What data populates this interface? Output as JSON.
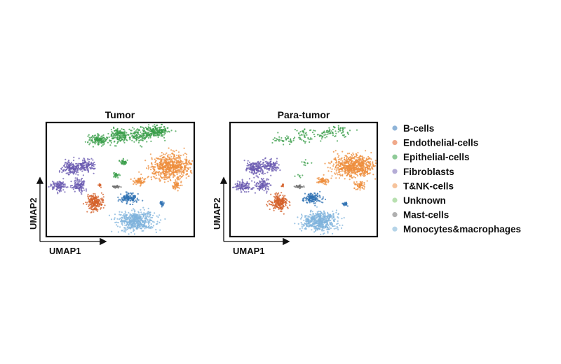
{
  "chart_data": {
    "type": "scatter",
    "xlabel": "UMAP1",
    "ylabel": "UMAP2",
    "grid": false,
    "legend_placement": "right",
    "panels": [
      {
        "title": "Tumor",
        "epithelial_density": 1.0
      },
      {
        "title": "Para-tumor",
        "epithelial_density": 0.25
      }
    ],
    "legend": [
      {
        "name": "B-cells",
        "color": "#8fb4d8",
        "plot_color": "#2f72b3"
      },
      {
        "name": "Endothelial-cells",
        "color": "#f0a98a",
        "plot_color": "#d4602a"
      },
      {
        "name": "Epithelial-cells",
        "color": "#8fcb98",
        "plot_color": "#3a9e4a"
      },
      {
        "name": "Fibroblasts",
        "color": "#b4acd6",
        "plot_color": "#6a5ab0"
      },
      {
        "name": "T&NK-cells",
        "color": "#f6c39c",
        "plot_color": "#ee8d3c"
      },
      {
        "name": "Unknown",
        "color": "#b8e0b0",
        "plot_color": "#a6d99c"
      },
      {
        "name": "Mast-cells",
        "color": "#b0b0b0",
        "plot_color": "#707070"
      },
      {
        "name": "Monocytes&macrophages",
        "color": "#b5d4e8",
        "plot_color": "#7fb3dc"
      }
    ],
    "clusters": [
      {
        "type": 2,
        "cx": 3.6,
        "cy": 6.8,
        "sx": 0.6,
        "sy": 0.3,
        "n": 150
      },
      {
        "type": 2,
        "cx": 4.9,
        "cy": 7.1,
        "sx": 0.5,
        "sy": 0.4,
        "n": 160
      },
      {
        "type": 2,
        "cx": 6.2,
        "cy": 7.1,
        "sx": 0.6,
        "sy": 0.4,
        "n": 120
      },
      {
        "type": 2,
        "cx": 7.4,
        "cy": 7.4,
        "sx": 0.7,
        "sy": 0.35,
        "n": 220
      },
      {
        "type": 2,
        "cx": 5.2,
        "cy": 5.2,
        "sx": 0.25,
        "sy": 0.15,
        "n": 40
      },
      {
        "type": 2,
        "cx": 4.7,
        "cy": 4.3,
        "sx": 0.2,
        "sy": 0.15,
        "n": 25
      },
      {
        "type": 3,
        "cx": 1.7,
        "cy": 4.8,
        "sx": 0.5,
        "sy": 0.4,
        "n": 160
      },
      {
        "type": 3,
        "cx": 2.7,
        "cy": 5.0,
        "sx": 0.5,
        "sy": 0.4,
        "n": 120
      },
      {
        "type": 3,
        "cx": 0.9,
        "cy": 3.5,
        "sx": 0.45,
        "sy": 0.3,
        "n": 110
      },
      {
        "type": 3,
        "cx": 2.2,
        "cy": 3.6,
        "sx": 0.4,
        "sy": 0.35,
        "n": 110
      },
      {
        "type": 4,
        "cx": 8.4,
        "cy": 4.9,
        "sx": 1.2,
        "sy": 0.65,
        "n": 650
      },
      {
        "type": 4,
        "cx": 8.8,
        "cy": 3.6,
        "sx": 0.3,
        "sy": 0.3,
        "n": 60
      },
      {
        "type": 4,
        "cx": 6.3,
        "cy": 3.9,
        "sx": 0.35,
        "sy": 0.2,
        "n": 60
      },
      {
        "type": 1,
        "cx": 3.3,
        "cy": 2.4,
        "sx": 0.45,
        "sy": 0.45,
        "n": 220
      },
      {
        "type": 1,
        "cx": 3.6,
        "cy": 3.6,
        "sx": 0.1,
        "sy": 0.1,
        "n": 12
      },
      {
        "type": 6,
        "cx": 4.7,
        "cy": 3.5,
        "sx": 0.25,
        "sy": 0.08,
        "n": 30
      },
      {
        "type": 0,
        "cx": 5.6,
        "cy": 2.7,
        "sx": 0.5,
        "sy": 0.3,
        "n": 140
      },
      {
        "type": 0,
        "cx": 7.8,
        "cy": 2.3,
        "sx": 0.15,
        "sy": 0.15,
        "n": 25
      },
      {
        "type": 7,
        "cx": 6.1,
        "cy": 1.1,
        "sx": 1.0,
        "sy": 0.55,
        "n": 520
      }
    ]
  }
}
